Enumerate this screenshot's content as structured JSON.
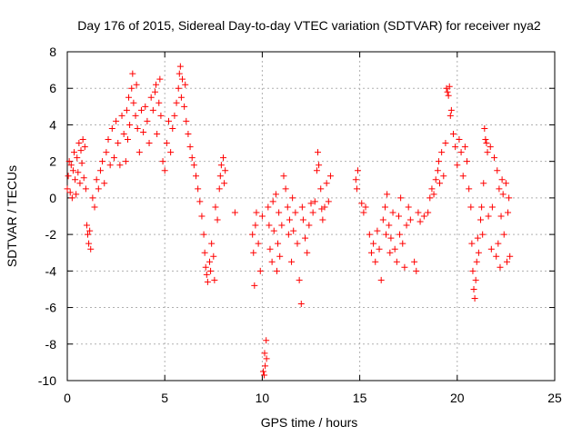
{
  "chart_data": {
    "type": "scatter",
    "title": "Day 176 of 2015, Sidereal Day-to-day VTEC variation (SDTVAR) for receiver nya2",
    "xlabel": "GPS time / hours",
    "ylabel": "SDTVAR / TECUs",
    "xlim": [
      0,
      25
    ],
    "ylim": [
      -10,
      8
    ],
    "xticks": [
      0,
      5,
      10,
      15,
      20,
      25
    ],
    "yticks": [
      -10,
      -8,
      -6,
      -4,
      -2,
      0,
      2,
      4,
      6,
      8
    ],
    "grid": true,
    "marker": "+",
    "color": "#ff0000",
    "series": [
      {
        "name": "SDTVAR",
        "points": [
          [
            0.0,
            0.5
          ],
          [
            0.05,
            1.2
          ],
          [
            0.1,
            2.0
          ],
          [
            0.15,
            0.3
          ],
          [
            0.2,
            1.8
          ],
          [
            0.25,
            0.0
          ],
          [
            0.3,
            1.5
          ],
          [
            0.35,
            2.5
          ],
          [
            0.4,
            1.0
          ],
          [
            0.45,
            0.2
          ],
          [
            0.5,
            2.2
          ],
          [
            0.55,
            1.4
          ],
          [
            0.6,
            3.0
          ],
          [
            0.65,
            0.8
          ],
          [
            0.7,
            2.6
          ],
          [
            0.75,
            1.9
          ],
          [
            0.8,
            3.2
          ],
          [
            0.85,
            1.1
          ],
          [
            0.9,
            2.8
          ],
          [
            0.95,
            0.5
          ],
          [
            1.0,
            -1.5
          ],
          [
            1.05,
            -2.0
          ],
          [
            1.1,
            -2.5
          ],
          [
            1.15,
            -1.8
          ],
          [
            1.2,
            -2.8
          ],
          [
            1.3,
            0.0
          ],
          [
            1.4,
            -0.5
          ],
          [
            1.5,
            1.0
          ],
          [
            1.6,
            0.5
          ],
          [
            1.7,
            1.5
          ],
          [
            1.8,
            2.0
          ],
          [
            1.9,
            0.8
          ],
          [
            2.0,
            2.5
          ],
          [
            2.1,
            3.2
          ],
          [
            2.2,
            1.8
          ],
          [
            2.3,
            3.8
          ],
          [
            2.4,
            2.2
          ],
          [
            2.5,
            4.2
          ],
          [
            2.6,
            3.0
          ],
          [
            2.7,
            1.8
          ],
          [
            2.8,
            4.5
          ],
          [
            2.9,
            3.5
          ],
          [
            3.0,
            2.0
          ],
          [
            3.05,
            4.8
          ],
          [
            3.1,
            3.2
          ],
          [
            3.15,
            5.5
          ],
          [
            3.2,
            4.0
          ],
          [
            3.3,
            6.0
          ],
          [
            3.35,
            6.8
          ],
          [
            3.4,
            5.2
          ],
          [
            3.5,
            4.5
          ],
          [
            3.55,
            6.2
          ],
          [
            3.6,
            3.8
          ],
          [
            3.7,
            2.5
          ],
          [
            3.8,
            4.8
          ],
          [
            3.9,
            3.6
          ],
          [
            4.0,
            5.0
          ],
          [
            4.1,
            4.2
          ],
          [
            4.2,
            3.0
          ],
          [
            4.3,
            5.5
          ],
          [
            4.4,
            4.8
          ],
          [
            4.5,
            5.8
          ],
          [
            4.55,
            6.2
          ],
          [
            4.6,
            3.5
          ],
          [
            4.7,
            5.2
          ],
          [
            4.75,
            6.5
          ],
          [
            4.8,
            4.5
          ],
          [
            4.9,
            2.0
          ],
          [
            5.0,
            1.5
          ],
          [
            5.1,
            3.0
          ],
          [
            5.2,
            4.2
          ],
          [
            5.3,
            2.5
          ],
          [
            5.4,
            3.8
          ],
          [
            5.5,
            4.5
          ],
          [
            5.6,
            5.2
          ],
          [
            5.7,
            6.0
          ],
          [
            5.75,
            6.8
          ],
          [
            5.8,
            7.2
          ],
          [
            5.85,
            5.5
          ],
          [
            5.9,
            6.5
          ],
          [
            6.0,
            5.0
          ],
          [
            6.05,
            6.2
          ],
          [
            6.1,
            4.2
          ],
          [
            6.2,
            3.5
          ],
          [
            6.3,
            2.8
          ],
          [
            6.4,
            2.2
          ],
          [
            6.5,
            1.8
          ],
          [
            6.6,
            1.2
          ],
          [
            6.7,
            0.5
          ],
          [
            6.8,
            -0.2
          ],
          [
            6.9,
            -1.0
          ],
          [
            7.0,
            -2.0
          ],
          [
            7.05,
            -3.0
          ],
          [
            7.1,
            -3.8
          ],
          [
            7.15,
            -4.2
          ],
          [
            7.2,
            -4.6
          ],
          [
            7.3,
            -3.5
          ],
          [
            7.35,
            -4.0
          ],
          [
            7.4,
            -2.5
          ],
          [
            7.5,
            -3.2
          ],
          [
            7.55,
            -4.5
          ],
          [
            7.6,
            -0.5
          ],
          [
            7.7,
            -1.2
          ],
          [
            7.8,
            0.5
          ],
          [
            7.85,
            1.2
          ],
          [
            7.9,
            1.8
          ],
          [
            8.0,
            2.2
          ],
          [
            8.05,
            0.8
          ],
          [
            8.1,
            1.5
          ],
          [
            8.6,
            -0.8
          ],
          [
            9.5,
            -2.0
          ],
          [
            9.55,
            -3.0
          ],
          [
            9.6,
            -4.8
          ],
          [
            9.65,
            -1.5
          ],
          [
            9.7,
            -0.8
          ],
          [
            9.8,
            -2.5
          ],
          [
            9.9,
            -4.0
          ],
          [
            10.0,
            -1.0
          ],
          [
            10.05,
            -9.5
          ],
          [
            10.1,
            -9.7
          ],
          [
            10.12,
            -8.5
          ],
          [
            10.15,
            -9.2
          ],
          [
            10.2,
            -7.8
          ],
          [
            10.22,
            -8.8
          ],
          [
            10.3,
            -0.5
          ],
          [
            10.35,
            -1.5
          ],
          [
            10.4,
            -2.8
          ],
          [
            10.5,
            -3.5
          ],
          [
            10.55,
            -0.2
          ],
          [
            10.6,
            -1.8
          ],
          [
            10.7,
            0.2
          ],
          [
            10.75,
            -4.0
          ],
          [
            10.8,
            -2.5
          ],
          [
            10.85,
            -0.8
          ],
          [
            10.9,
            -3.2
          ],
          [
            11.0,
            -1.5
          ],
          [
            11.1,
            1.2
          ],
          [
            11.2,
            0.5
          ],
          [
            11.3,
            -0.5
          ],
          [
            11.35,
            -2.0
          ],
          [
            11.4,
            -1.2
          ],
          [
            11.5,
            -3.5
          ],
          [
            11.55,
            0.0
          ],
          [
            11.6,
            -1.8
          ],
          [
            11.7,
            -0.8
          ],
          [
            11.8,
            -2.5
          ],
          [
            11.9,
            -4.5
          ],
          [
            12.0,
            -5.8
          ],
          [
            12.05,
            -0.5
          ],
          [
            12.1,
            -1.2
          ],
          [
            12.2,
            -2.2
          ],
          [
            12.3,
            -3.0
          ],
          [
            12.4,
            -1.5
          ],
          [
            12.5,
            -0.3
          ],
          [
            12.6,
            -0.8
          ],
          [
            12.7,
            -0.2
          ],
          [
            12.8,
            1.5
          ],
          [
            12.85,
            2.5
          ],
          [
            12.9,
            1.8
          ],
          [
            13.0,
            0.5
          ],
          [
            13.05,
            -0.6
          ],
          [
            13.1,
            -1.2
          ],
          [
            13.2,
            -0.5
          ],
          [
            13.3,
            0.8
          ],
          [
            13.4,
            -0.2
          ],
          [
            13.5,
            1.2
          ],
          [
            14.8,
            1.0
          ],
          [
            14.85,
            0.5
          ],
          [
            14.9,
            1.5
          ],
          [
            15.1,
            -0.3
          ],
          [
            15.2,
            -0.8
          ],
          [
            15.3,
            -0.5
          ],
          [
            15.5,
            -2.0
          ],
          [
            15.6,
            -3.0
          ],
          [
            15.7,
            -2.5
          ],
          [
            15.8,
            -3.5
          ],
          [
            15.9,
            -1.8
          ],
          [
            16.0,
            -2.8
          ],
          [
            16.1,
            -4.5
          ],
          [
            16.2,
            -1.2
          ],
          [
            16.3,
            -0.5
          ],
          [
            16.35,
            -2.0
          ],
          [
            16.4,
            0.2
          ],
          [
            16.5,
            -1.5
          ],
          [
            16.55,
            -3.0
          ],
          [
            16.6,
            -2.2
          ],
          [
            16.7,
            -0.8
          ],
          [
            16.8,
            -2.8
          ],
          [
            16.9,
            -3.5
          ],
          [
            17.0,
            -1.0
          ],
          [
            17.05,
            -2.0
          ],
          [
            17.1,
            0.0
          ],
          [
            17.2,
            -2.5
          ],
          [
            17.3,
            -3.8
          ],
          [
            17.4,
            -1.5
          ],
          [
            17.5,
            -0.5
          ],
          [
            17.6,
            -1.2
          ],
          [
            17.8,
            -3.5
          ],
          [
            17.9,
            -4.0
          ],
          [
            18.0,
            -0.8
          ],
          [
            18.1,
            -1.3
          ],
          [
            18.3,
            -1.0
          ],
          [
            18.5,
            -0.8
          ],
          [
            18.6,
            0.0
          ],
          [
            18.7,
            0.5
          ],
          [
            18.8,
            0.2
          ],
          [
            18.9,
            1.0
          ],
          [
            19.0,
            1.5
          ],
          [
            19.05,
            2.0
          ],
          [
            19.1,
            0.8
          ],
          [
            19.2,
            2.5
          ],
          [
            19.3,
            1.2
          ],
          [
            19.4,
            3.0
          ],
          [
            19.45,
            6.0
          ],
          [
            19.5,
            5.8
          ],
          [
            19.55,
            5.6
          ],
          [
            19.6,
            6.1
          ],
          [
            19.65,
            4.5
          ],
          [
            19.7,
            4.8
          ],
          [
            19.8,
            3.5
          ],
          [
            19.9,
            2.8
          ],
          [
            20.0,
            1.8
          ],
          [
            20.1,
            3.2
          ],
          [
            20.2,
            2.5
          ],
          [
            20.3,
            1.2
          ],
          [
            20.4,
            2.8
          ],
          [
            20.5,
            2.0
          ],
          [
            20.6,
            0.5
          ],
          [
            20.7,
            -0.5
          ],
          [
            20.75,
            -2.5
          ],
          [
            20.8,
            -4.0
          ],
          [
            20.85,
            -5.0
          ],
          [
            20.9,
            -5.5
          ],
          [
            20.95,
            -4.5
          ],
          [
            21.0,
            -3.5
          ],
          [
            21.05,
            -2.2
          ],
          [
            21.1,
            -3.0
          ],
          [
            21.2,
            -1.2
          ],
          [
            21.25,
            -0.5
          ],
          [
            21.3,
            -2.0
          ],
          [
            21.35,
            0.8
          ],
          [
            21.4,
            3.8
          ],
          [
            21.45,
            3.2
          ],
          [
            21.5,
            3.0
          ],
          [
            21.55,
            2.5
          ],
          [
            21.6,
            -1.0
          ],
          [
            21.7,
            2.8
          ],
          [
            21.75,
            -2.8
          ],
          [
            21.8,
            -0.5
          ],
          [
            21.9,
            2.2
          ],
          [
            22.0,
            -3.2
          ],
          [
            22.05,
            1.5
          ],
          [
            22.1,
            -2.5
          ],
          [
            22.15,
            0.5
          ],
          [
            22.2,
            -3.8
          ],
          [
            22.25,
            -1.0
          ],
          [
            22.3,
            1.0
          ],
          [
            22.35,
            0.2
          ],
          [
            22.4,
            -2.0
          ],
          [
            22.5,
            0.8
          ],
          [
            22.55,
            -3.5
          ],
          [
            22.6,
            -0.8
          ],
          [
            22.65,
            0.0
          ],
          [
            22.7,
            -3.2
          ]
        ]
      }
    ]
  }
}
